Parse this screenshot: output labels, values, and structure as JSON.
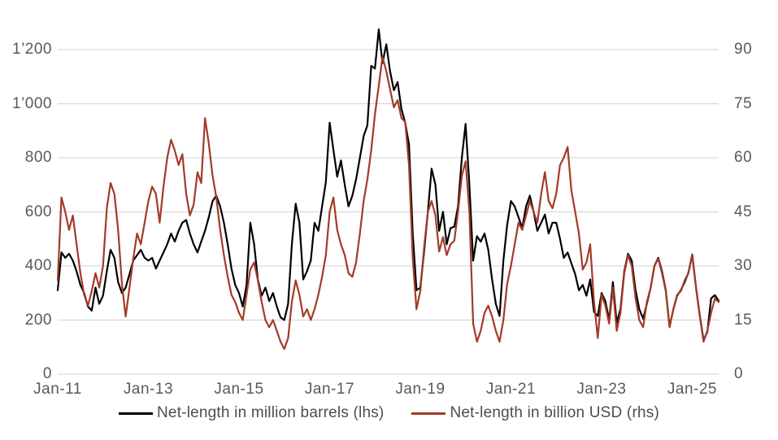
{
  "colors": {
    "background": "#ffffff",
    "gridline": "#d9d9d9",
    "axis_text": "#595959",
    "series_barrels": "#000000",
    "series_usd": "#a43a28"
  },
  "chart_data": {
    "type": "line",
    "title": "",
    "xlabel": "",
    "ylabel_left": "",
    "ylabel_right": "",
    "grid": true,
    "legend_position": "bottom",
    "x_start": "Jan-2011",
    "x_step": "1 month",
    "x_tick_labels": [
      "Jan-11",
      "Jan-13",
      "Jan-15",
      "Jan-17",
      "Jan-19",
      "Jan-21",
      "Jan-23",
      "Jan-25"
    ],
    "x_tick_month_indices": [
      0,
      24,
      48,
      72,
      96,
      120,
      144,
      168
    ],
    "left_axis": {
      "tick_labels": [
        "1’200",
        "1’000",
        "800",
        "600",
        "400",
        "200",
        "0"
      ],
      "tick_values": [
        1200,
        1000,
        800,
        600,
        400,
        200,
        0
      ],
      "min": 0,
      "max": 1200
    },
    "right_axis": {
      "tick_labels": [
        "90",
        "75",
        "60",
        "45",
        "30",
        "15",
        "0"
      ],
      "tick_values": [
        90,
        75,
        60,
        45,
        30,
        15,
        0
      ],
      "min": 0,
      "max": 90
    },
    "series": [
      {
        "name": "Net-length in million barrels (lhs)",
        "axis": "left",
        "color": "#000000",
        "values": [
          310,
          450,
          430,
          445,
          420,
          380,
          330,
          300,
          250,
          235,
          320,
          260,
          290,
          380,
          460,
          430,
          340,
          300,
          320,
          370,
          420,
          440,
          460,
          430,
          420,
          430,
          390,
          420,
          450,
          480,
          520,
          490,
          530,
          560,
          570,
          520,
          480,
          450,
          490,
          530,
          580,
          640,
          660,
          620,
          560,
          480,
          390,
          330,
          300,
          250,
          330,
          560,
          480,
          350,
          290,
          320,
          270,
          300,
          250,
          210,
          200,
          260,
          480,
          630,
          560,
          350,
          380,
          420,
          560,
          530,
          620,
          710,
          930,
          830,
          730,
          790,
          700,
          620,
          660,
          720,
          800,
          880,
          920,
          1140,
          1130,
          1275,
          1150,
          1220,
          1120,
          1050,
          1080,
          980,
          930,
          850,
          520,
          310,
          320,
          450,
          600,
          760,
          700,
          530,
          600,
          480,
          540,
          545,
          620,
          800,
          925,
          700,
          420,
          510,
          490,
          520,
          460,
          350,
          260,
          215,
          420,
          550,
          640,
          620,
          580,
          540,
          620,
          660,
          600,
          530,
          560,
          590,
          520,
          560,
          560,
          500,
          430,
          450,
          410,
          370,
          310,
          330,
          290,
          350,
          230,
          215,
          300,
          270,
          200,
          340,
          190,
          240,
          380,
          445,
          420,
          310,
          240,
          205,
          260,
          320,
          400,
          430,
          380,
          310,
          175,
          240,
          290,
          310,
          340,
          375,
          442,
          322,
          217,
          126,
          156,
          280,
          292,
          271
        ]
      },
      {
        "name": "Net-length in billion USD (rhs)",
        "axis": "right",
        "color": "#a43a28",
        "values": [
          26,
          49,
          45,
          40,
          44,
          36,
          28,
          22,
          19,
          23,
          28,
          24,
          30,
          46,
          53,
          50,
          40,
          25,
          16,
          24,
          32,
          39,
          36,
          42,
          48,
          52,
          50,
          42,
          52,
          60,
          65,
          62,
          58,
          61,
          50,
          44,
          47,
          56,
          53,
          71,
          64,
          55,
          49,
          40,
          33,
          27,
          22,
          20,
          17,
          15,
          22,
          29,
          31,
          26,
          20,
          15,
          13,
          15,
          12,
          9,
          7,
          10,
          20,
          26,
          22,
          16,
          18,
          15,
          18,
          22,
          27,
          33,
          45,
          49,
          40,
          36,
          33,
          28,
          27,
          31,
          39,
          48,
          54,
          62,
          72,
          80,
          88,
          84,
          79,
          74,
          76,
          71,
          70,
          58,
          32,
          18,
          23,
          35,
          45,
          48,
          44,
          34,
          38,
          33,
          36,
          37,
          45,
          55,
          59,
          45,
          14,
          9,
          12,
          17,
          19,
          16,
          12,
          9,
          15,
          25,
          30,
          36,
          42,
          40,
          44,
          48,
          45,
          42,
          50,
          56,
          48,
          46,
          50,
          58,
          60,
          63,
          51,
          45,
          39,
          29,
          31,
          36,
          20,
          10,
          22,
          19,
          14,
          24,
          12,
          17,
          28,
          33,
          30,
          21,
          15,
          13,
          20,
          24,
          30,
          32,
          28,
          23,
          13,
          18,
          22,
          23,
          26,
          28,
          33,
          24,
          16,
          9,
          12,
          17,
          21,
          20
        ]
      }
    ]
  },
  "legend": {
    "item1": "Net-length in million barrels (lhs)",
    "item2": "Net-length in billion USD (rhs)"
  }
}
